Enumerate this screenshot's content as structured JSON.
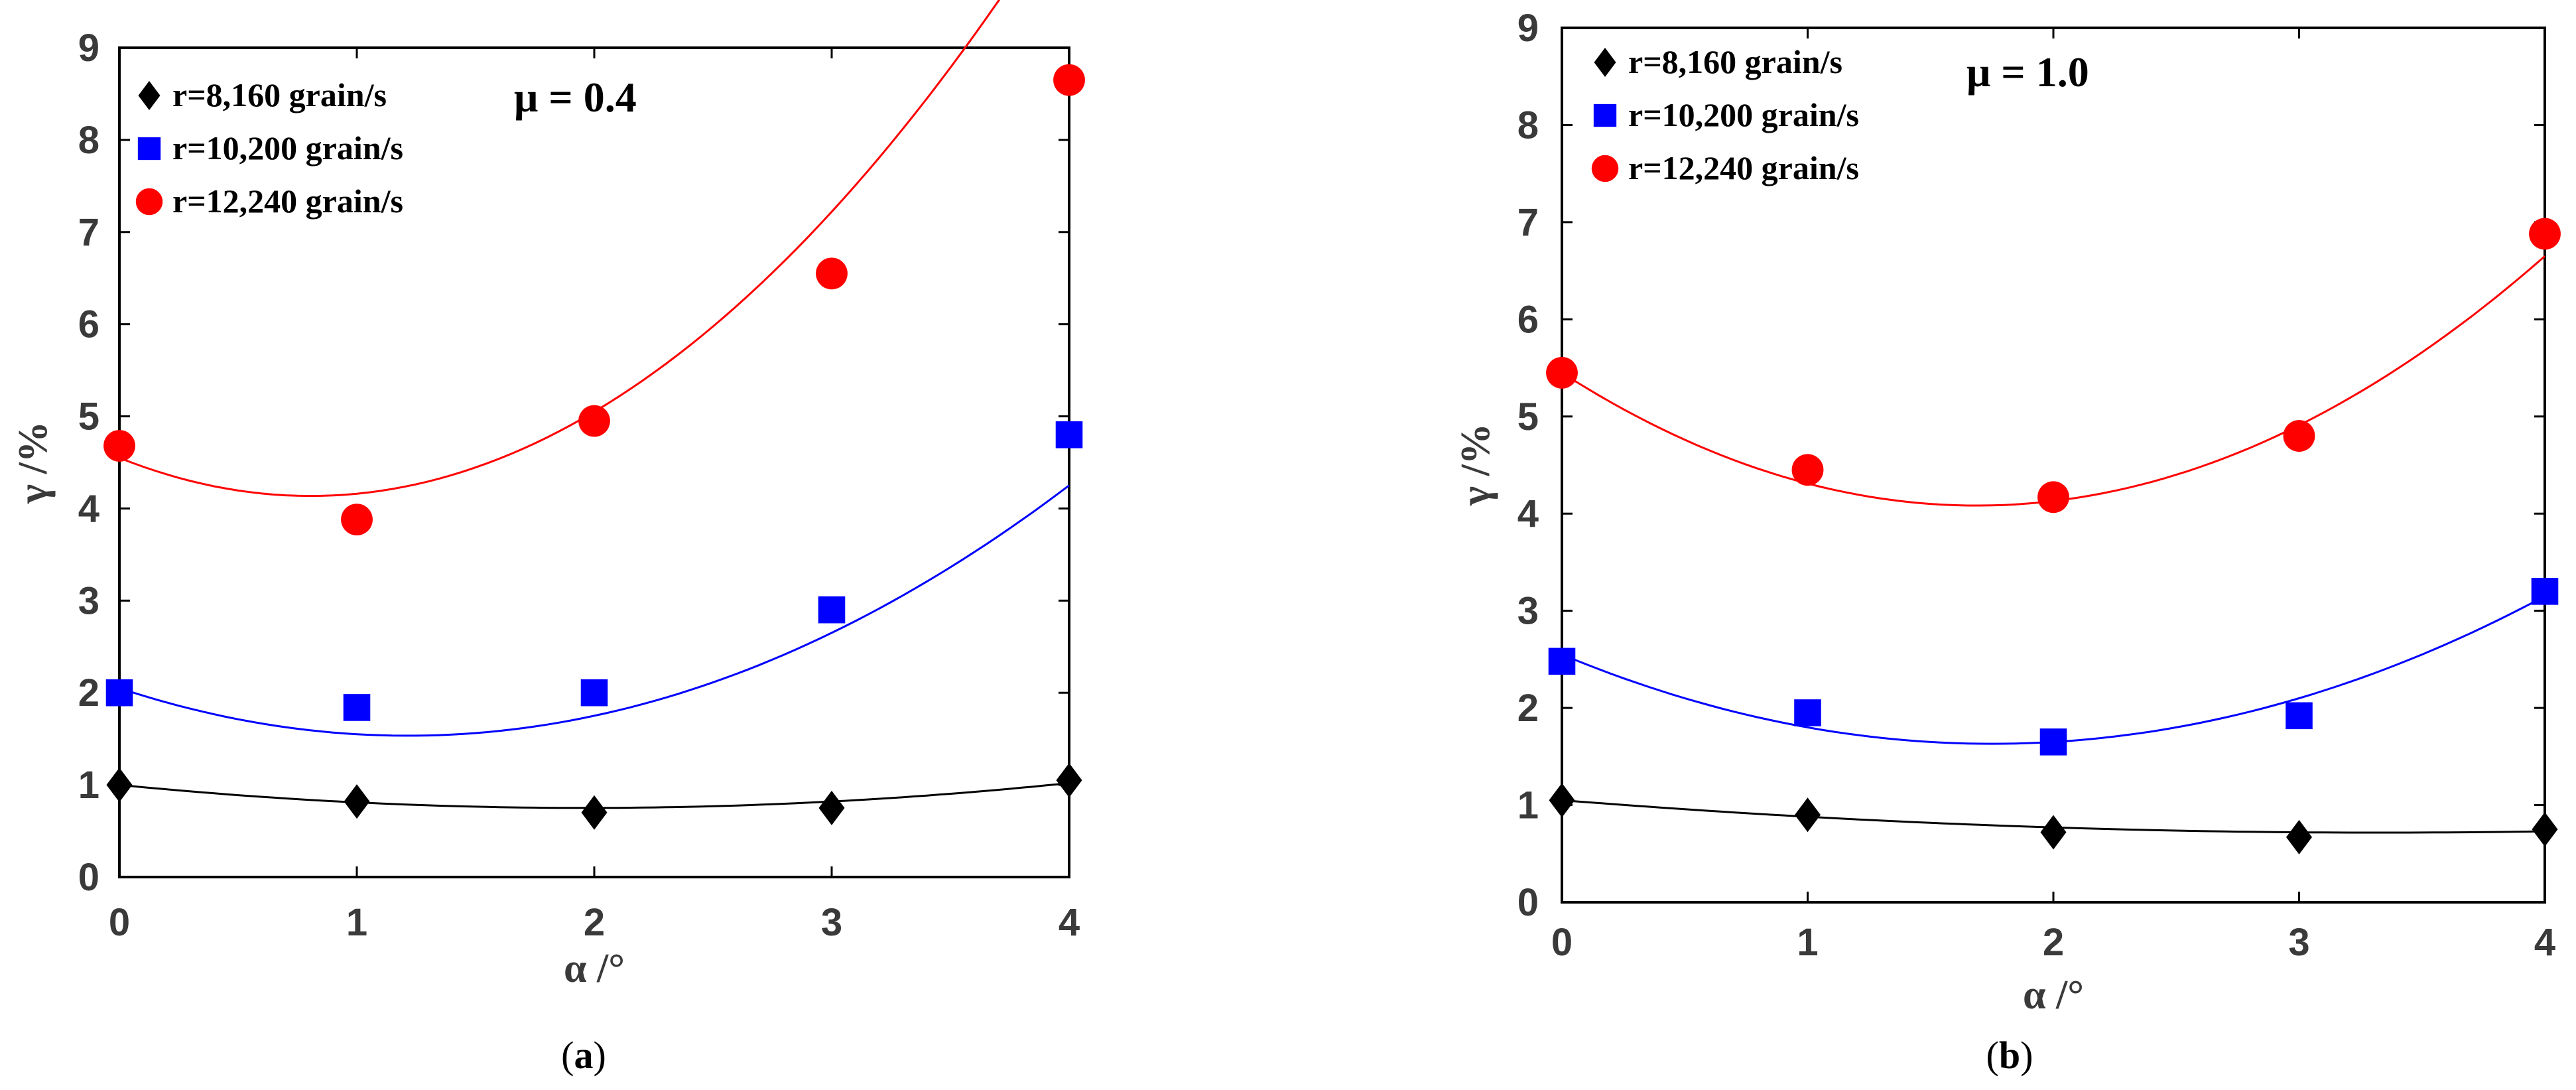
{
  "chart_data": [
    {
      "type": "scatter",
      "panel_label": "a",
      "annotation": "μ = 0.4",
      "xlabel": "α /°",
      "ylabel": "γ /%",
      "xlim": [
        0,
        4
      ],
      "ylim": [
        0,
        9
      ],
      "xticks": [
        "0",
        "1",
        "2",
        "3",
        "4"
      ],
      "yticks": [
        "0",
        "1",
        "2",
        "3",
        "4",
        "5",
        "6",
        "7",
        "8",
        "9"
      ],
      "legend_position": "top-left",
      "x": [
        0,
        1,
        2,
        3,
        4
      ],
      "series": [
        {
          "name": "r=8,160 grain/s",
          "marker": "diamond",
          "color": "#000000",
          "values": [
            1.0,
            0.82,
            0.7,
            0.75,
            1.05
          ],
          "fit": [
            1.0,
            -0.255,
            0.065
          ]
        },
        {
          "name": "r=10,200 grain/s",
          "marker": "square",
          "color": "#0000ff",
          "values": [
            2.0,
            1.84,
            2.0,
            2.9,
            4.8
          ],
          "fit": [
            2.05,
            -0.85,
            0.35
          ]
        },
        {
          "name": "r=12,240 grain/s",
          "marker": "circle",
          "color": "#ff0000",
          "values": [
            4.68,
            3.88,
            4.95,
            6.55,
            8.65
          ],
          "fit": [
            4.55,
            -1.03,
            0.64
          ]
        }
      ]
    },
    {
      "type": "scatter",
      "panel_label": "b",
      "annotation": "μ = 1.0",
      "xlabel": "α /°",
      "ylabel": "γ /%",
      "xlim": [
        0,
        4
      ],
      "ylim": [
        0,
        9
      ],
      "xticks": [
        "0",
        "1",
        "2",
        "3",
        "4"
      ],
      "yticks": [
        "0",
        "1",
        "2",
        "3",
        "4",
        "5",
        "6",
        "7",
        "8",
        "9"
      ],
      "legend_position": "top-left",
      "x": [
        0,
        1,
        2,
        3,
        4
      ],
      "series": [
        {
          "name": "r=8,160 grain/s",
          "marker": "diamond",
          "color": "#000000",
          "values": [
            1.05,
            0.9,
            0.72,
            0.67,
            0.75
          ],
          "fit": [
            1.05,
            -0.2,
            0.03
          ]
        },
        {
          "name": "r=10,200 grain/s",
          "marker": "square",
          "color": "#0000ff",
          "values": [
            2.48,
            1.95,
            1.65,
            1.92,
            3.2
          ],
          "fit": [
            2.55,
            -1.05,
            0.3
          ]
        },
        {
          "name": "r=12,240 grain/s",
          "marker": "circle",
          "color": "#ff0000",
          "values": [
            5.45,
            4.45,
            4.17,
            4.8,
            6.88
          ],
          "fit": [
            5.45,
            -1.62,
            0.48
          ]
        }
      ]
    }
  ]
}
